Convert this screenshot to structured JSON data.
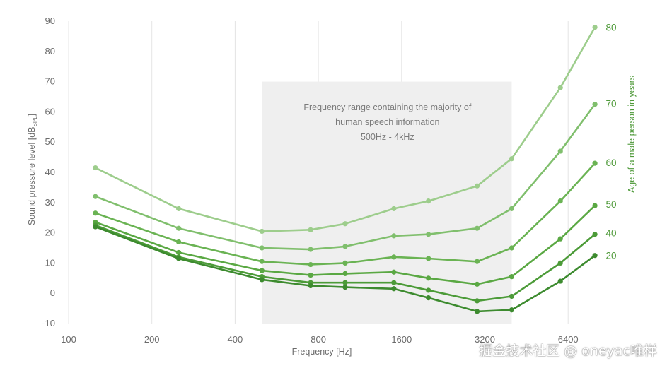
{
  "chart_data": {
    "type": "line",
    "x_ticks": [
      "100",
      "200",
      "400",
      "800",
      "1600",
      "3200",
      "6400"
    ],
    "xlabel": "Frequency [Hz]",
    "ylabel": "Sound pressure level [dB",
    "ylabel_sub": "SPL",
    "ylabel_close": "]",
    "ylim": [
      -10,
      90
    ],
    "y_ticks": [
      "90",
      "80",
      "70",
      "60",
      "50",
      "40",
      "30",
      "20",
      "10",
      "0",
      "-10"
    ],
    "x_scale": "log2",
    "grid": "vertical",
    "band": {
      "from": 500,
      "to": 4000,
      "ymax": 70,
      "text": [
        "Frequency range containing the majority of",
        "human speech information",
        "500Hz - 4kHz"
      ]
    },
    "secondary_axis_title": "Age of a male person in years",
    "x": [
      125,
      250,
      500,
      750,
      1000,
      1500,
      2000,
      3000,
      4000,
      6000,
      8000
    ],
    "series": [
      {
        "name": "20",
        "color": "#3d8b2f",
        "values": [
          22,
          11.5,
          4.5,
          2.5,
          2,
          1.5,
          -1.5,
          -6,
          -5.5,
          4,
          12.5
        ]
      },
      {
        "name": "40",
        "color": "#4c9b38",
        "values": [
          22.5,
          12,
          5.5,
          3.5,
          3.5,
          3.5,
          1,
          -2.5,
          -1,
          10,
          19.5
        ]
      },
      {
        "name": "50",
        "color": "#5aa843",
        "values": [
          23.5,
          13.5,
          7.5,
          6,
          6.5,
          7,
          5,
          3,
          5.5,
          18,
          29
        ]
      },
      {
        "name": "60",
        "color": "#6ab353",
        "values": [
          26.5,
          17,
          10.5,
          9.5,
          10,
          12,
          11.5,
          10.5,
          15,
          30.5,
          43
        ]
      },
      {
        "name": "70",
        "color": "#80bf6d",
        "values": [
          32,
          21.5,
          15,
          14.5,
          15.5,
          19,
          19.5,
          21.5,
          28,
          47,
          62.5
        ]
      },
      {
        "name": "80",
        "color": "#9dcd8c",
        "values": [
          41.5,
          28,
          20.5,
          21,
          23,
          28,
          30.5,
          35.5,
          44.5,
          68,
          88
        ]
      }
    ]
  },
  "watermark": "掘金技术社区 @ oneyac唯样"
}
